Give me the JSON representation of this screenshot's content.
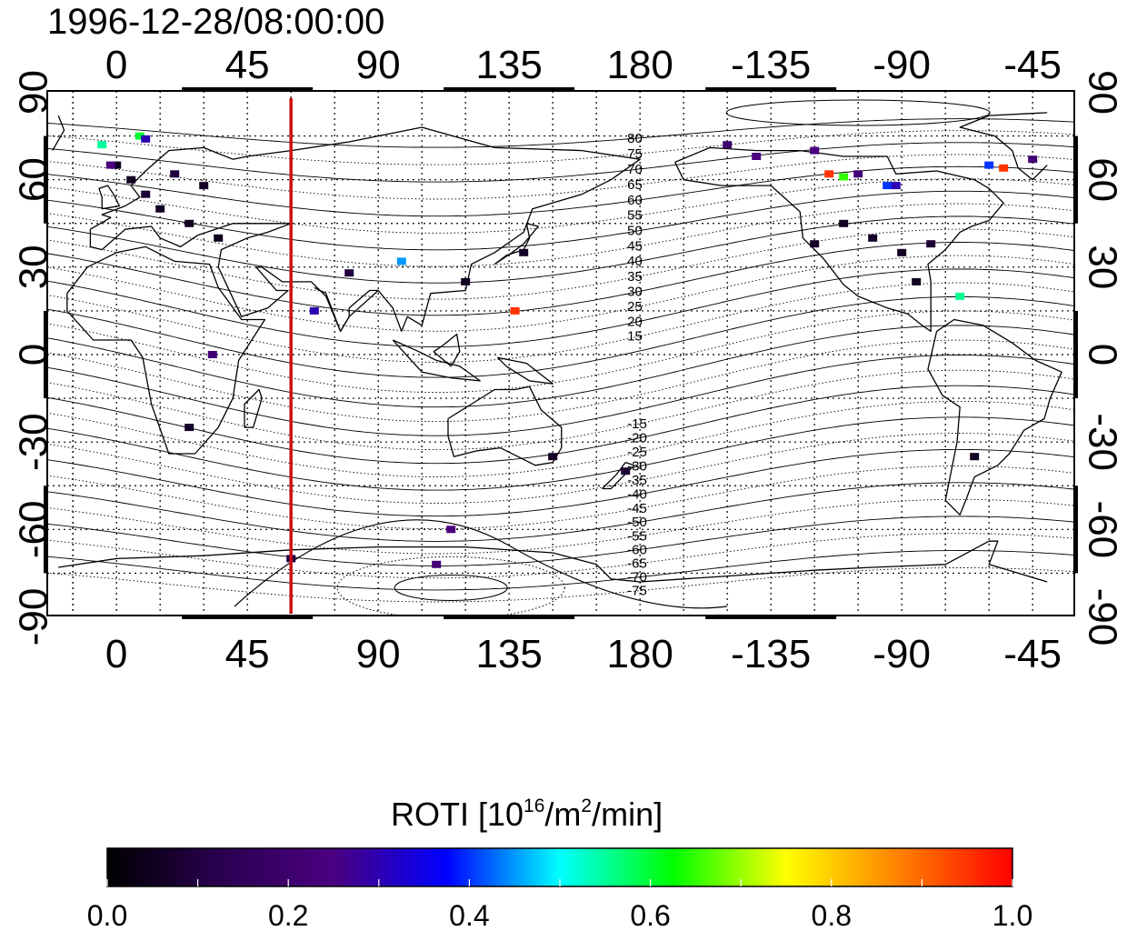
{
  "title": "1996-12-28/08:00:00",
  "colors": {
    "coastline": "#000000",
    "grid": "#000000",
    "terminator": "#cc1010",
    "frame": "#000000"
  },
  "map": {
    "projection": "equirectangular",
    "longitude_axis": {
      "center_longitude": 150,
      "ticks": [
        "0",
        "45",
        "90",
        "135",
        "180",
        "-135",
        "-90",
        "-45"
      ],
      "tick_longitudes": [
        0,
        45,
        90,
        135,
        180,
        225,
        270,
        315
      ]
    },
    "latitude_axis": {
      "ticks": [
        "90",
        "60",
        "30",
        "0",
        "-30",
        "-60",
        "-90"
      ],
      "tick_latitudes": [
        90,
        60,
        30,
        0,
        -30,
        -60,
        -90
      ]
    },
    "grid": "dotted",
    "terminator_longitude": 60,
    "contour_labels_north": [
      "80",
      "75",
      "70",
      "65",
      "60",
      "55",
      "50",
      "45",
      "40",
      "35",
      "30",
      "25",
      "20",
      "15"
    ],
    "contour_labels_south": [
      "-15",
      "-20",
      "-25",
      "-30",
      "-35",
      "-40",
      "-45",
      "-50",
      "-55",
      "-60",
      "-65",
      "-70",
      "-75"
    ]
  },
  "colorbar": {
    "title_prefix": "ROTI  [10",
    "title_exp1": "16",
    "title_mid": "/m",
    "title_exp2": "2",
    "title_suffix": "/min]",
    "ticks": [
      "0.0",
      "0.2",
      "0.4",
      "0.6",
      "0.8",
      "1.0"
    ],
    "range": [
      0.0,
      1.0
    ],
    "colormap": [
      "#000000",
      "#2a0050",
      "#4b0080",
      "#0000ff",
      "#00ffff",
      "#00ff00",
      "#ffff00",
      "#ff8000",
      "#ff0000"
    ]
  },
  "observations": [
    {
      "lon": 0,
      "lat": 65,
      "roti": 0.05
    },
    {
      "lon": 5,
      "lat": 60,
      "roti": 0.05
    },
    {
      "lon": 10,
      "lat": 55,
      "roti": 0.08
    },
    {
      "lon": 15,
      "lat": 50,
      "roti": 0.05
    },
    {
      "lon": 20,
      "lat": 62,
      "roti": 0.1
    },
    {
      "lon": 25,
      "lat": 45,
      "roti": 0.05
    },
    {
      "lon": 30,
      "lat": 58,
      "roti": 0.06
    },
    {
      "lon": 35,
      "lat": 40,
      "roti": 0.05
    },
    {
      "lon": -5,
      "lat": 72,
      "roti": 0.55
    },
    {
      "lon": 8,
      "lat": 75,
      "roti": 0.6
    },
    {
      "lon": 10,
      "lat": 74,
      "roti": 0.3
    },
    {
      "lon": -2,
      "lat": 65,
      "roti": 0.25
    },
    {
      "lon": 98,
      "lat": 32,
      "roti": 0.45
    },
    {
      "lon": 137,
      "lat": 15,
      "roti": 0.95
    },
    {
      "lon": 68,
      "lat": 15,
      "roti": 0.3
    },
    {
      "lon": 33,
      "lat": 0,
      "roti": 0.22
    },
    {
      "lon": 115,
      "lat": -60,
      "roti": 0.25
    },
    {
      "lon": 110,
      "lat": -72,
      "roti": 0.22
    },
    {
      "lon": -120,
      "lat": 70,
      "roti": 0.25
    },
    {
      "lon": -115,
      "lat": 62,
      "roti": 0.95
    },
    {
      "lon": -110,
      "lat": 61,
      "roti": 0.65
    },
    {
      "lon": -105,
      "lat": 62,
      "roti": 0.22
    },
    {
      "lon": -95,
      "lat": 58,
      "roti": 0.4
    },
    {
      "lon": -92,
      "lat": 58,
      "roti": 0.3
    },
    {
      "lon": -60,
      "lat": 65,
      "roti": 0.4
    },
    {
      "lon": -55,
      "lat": 64,
      "roti": 0.95
    },
    {
      "lon": -45,
      "lat": 67,
      "roti": 0.22
    },
    {
      "lon": -70,
      "lat": 20,
      "roti": 0.55
    },
    {
      "lon": -150,
      "lat": 72,
      "roti": 0.2
    },
    {
      "lon": -140,
      "lat": 68,
      "roti": 0.25
    },
    {
      "lon": -100,
      "lat": 40,
      "roti": 0.06
    },
    {
      "lon": -90,
      "lat": 35,
      "roti": 0.05
    },
    {
      "lon": -80,
      "lat": 38,
      "roti": 0.08
    },
    {
      "lon": -110,
      "lat": 45,
      "roti": 0.05
    },
    {
      "lon": -120,
      "lat": 38,
      "roti": 0.06
    },
    {
      "lon": -85,
      "lat": 25,
      "roti": 0.05
    },
    {
      "lon": 140,
      "lat": 35,
      "roti": 0.06
    },
    {
      "lon": 120,
      "lat": 25,
      "roti": 0.05
    },
    {
      "lon": 80,
      "lat": 28,
      "roti": 0.1
    },
    {
      "lon": 150,
      "lat": -35,
      "roti": 0.06
    },
    {
      "lon": 175,
      "lat": -40,
      "roti": 0.08
    },
    {
      "lon": -65,
      "lat": -35,
      "roti": 0.05
    },
    {
      "lon": 25,
      "lat": -25,
      "roti": 0.06
    },
    {
      "lon": 60,
      "lat": -70,
      "roti": 0.1
    }
  ]
}
